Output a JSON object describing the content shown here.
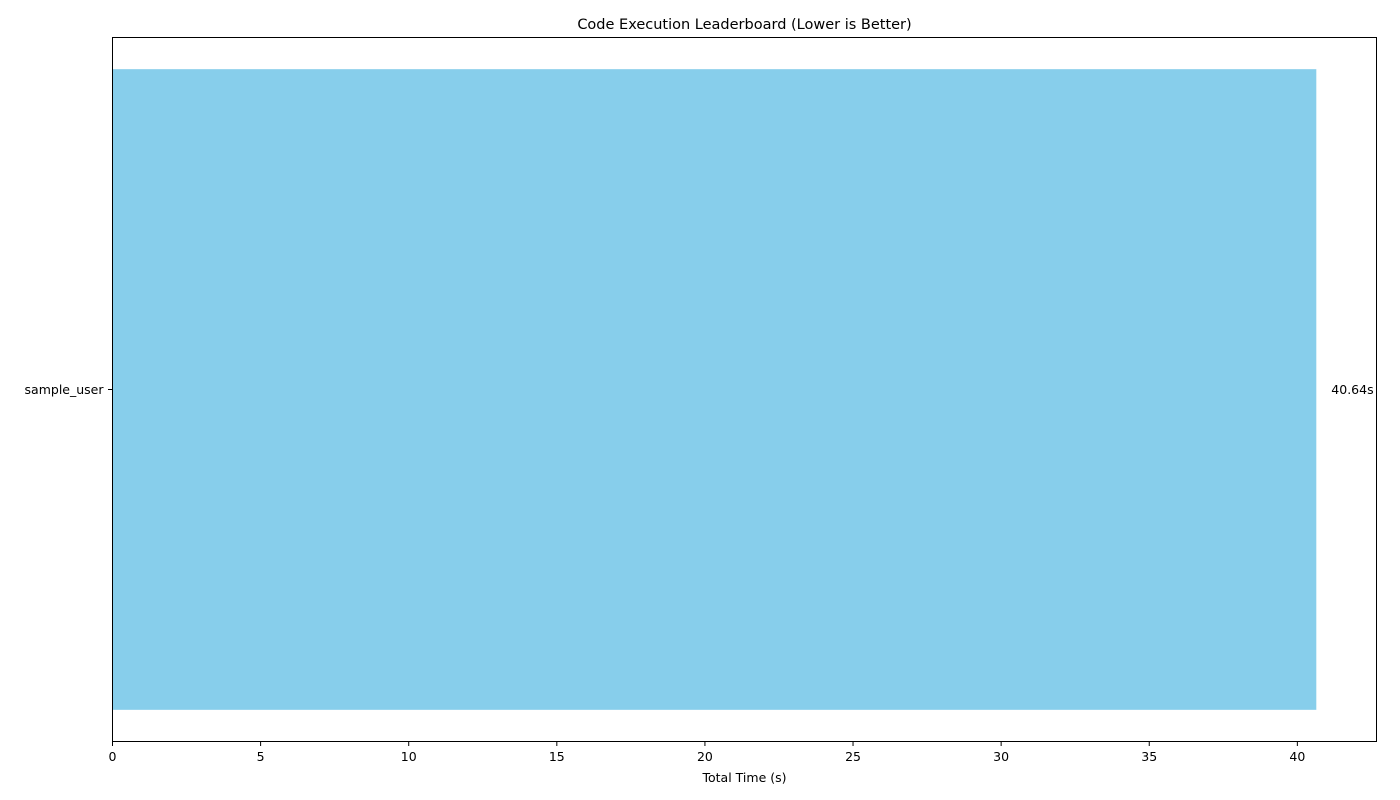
{
  "chart_data": {
    "type": "bar",
    "orientation": "horizontal",
    "title": "Code Execution Leaderboard (Lower is Better)",
    "xlabel": "Total Time (s)",
    "ylabel": "",
    "categories": [
      "sample_user"
    ],
    "values": [
      40.64
    ],
    "data_labels": [
      "40.64s"
    ],
    "xlim": [
      0,
      42.672
    ],
    "x_ticks": [
      0,
      5,
      10,
      15,
      20,
      25,
      30,
      35,
      40
    ],
    "x_tick_labels": [
      "0",
      "5",
      "10",
      "15",
      "20",
      "25",
      "30",
      "35",
      "40"
    ],
    "grid": false,
    "legend": "none",
    "bar_color": "#87CEEB"
  }
}
